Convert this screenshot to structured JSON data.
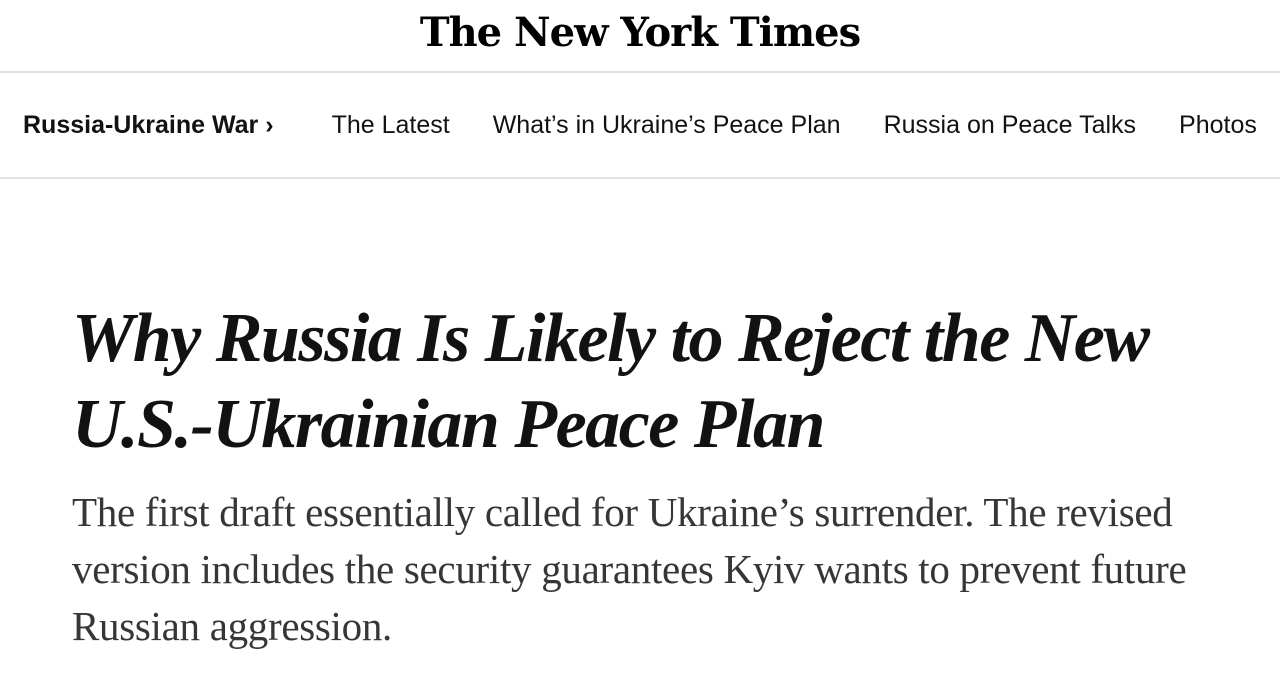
{
  "masthead": {
    "logo_text": "The New York Times"
  },
  "nav": {
    "section_label": "Russia-Ukraine War",
    "section_chevron": "›",
    "items": [
      {
        "label": "The Latest"
      },
      {
        "label": "What’s in Ukraine’s Peace Plan"
      },
      {
        "label": "Russia on Peace Talks"
      },
      {
        "label": "Photos"
      }
    ]
  },
  "article": {
    "headline": "Why Russia Is Likely to Reject the New U.S.-Ukrainian Peace Plan",
    "summary": "The first draft essentially called for Ukraine’s surrender. The revised version includes the security guarantees Kyiv wants to prevent future Russian aggression."
  }
}
